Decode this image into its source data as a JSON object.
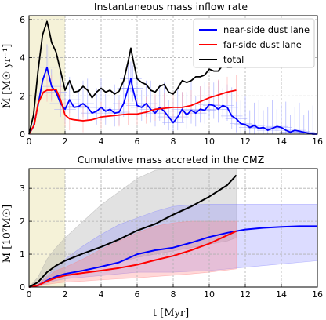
{
  "chart_data": [
    {
      "type": "line",
      "title": "Instantaneous mass inflow rate",
      "ylabel": "Ṁ [M☉ yr⁻¹]",
      "xlim": [
        0,
        16
      ],
      "ylim": [
        0,
        6.2
      ],
      "xticks": [
        0,
        2,
        4,
        6,
        8,
        10,
        12,
        14,
        16
      ],
      "yticks": [
        0,
        2,
        4,
        6
      ],
      "grid": true,
      "legend_position": "top-right",
      "shaded_span": [
        0,
        2
      ],
      "series": [
        {
          "name": "near-side dust lane",
          "color": "#0000ff",
          "x": [
            0,
            0.25,
            0.5,
            0.75,
            1.0,
            1.1,
            1.25,
            1.5,
            1.75,
            2.0,
            2.25,
            2.5,
            2.75,
            3.0,
            3.25,
            3.5,
            3.75,
            4.0,
            4.25,
            4.5,
            4.75,
            5.0,
            5.25,
            5.5,
            5.65,
            5.75,
            6.0,
            6.25,
            6.5,
            6.75,
            7.0,
            7.25,
            7.5,
            7.75,
            8.0,
            8.25,
            8.5,
            8.75,
            9.0,
            9.25,
            9.5,
            9.75,
            10.0,
            10.25,
            10.5,
            10.75,
            11.0,
            11.25,
            11.5,
            11.75,
            12.0,
            12.25,
            12.5,
            12.75,
            13.0,
            13.25,
            13.5,
            13.75,
            14.0,
            14.25,
            14.5,
            14.75,
            15.0,
            15.25,
            15.5,
            15.75,
            16.0
          ],
          "values": [
            0,
            0.4,
            1.5,
            2.8,
            3.5,
            3.1,
            2.5,
            2.2,
            1.6,
            1.3,
            1.8,
            1.4,
            1.45,
            1.6,
            1.4,
            1.1,
            1.2,
            1.4,
            1.2,
            1.3,
            1.1,
            1.15,
            1.6,
            2.4,
            2.9,
            2.4,
            1.5,
            1.4,
            1.6,
            1.3,
            1.1,
            1.4,
            1.2,
            0.9,
            0.6,
            0.9,
            1.3,
            1.0,
            1.25,
            1.1,
            1.3,
            1.25,
            1.55,
            1.5,
            1.3,
            1.5,
            1.4,
            0.95,
            0.8,
            0.55,
            0.5,
            0.35,
            0.45,
            0.3,
            0.35,
            0.2,
            0.3,
            0.4,
            0.35,
            0.2,
            0.1,
            0.2,
            0.15,
            0.1,
            0.05,
            0.0,
            0.0
          ]
        },
        {
          "name": "far-side dust lane",
          "color": "#ff0000",
          "x": [
            0,
            0.3,
            0.5,
            0.8,
            1.0,
            1.25,
            1.5,
            1.75,
            2.0,
            2.25,
            2.5,
            3.0,
            3.5,
            4.0,
            4.5,
            5.0,
            5.5,
            6.0,
            6.5,
            7.0,
            7.5,
            8.0,
            8.5,
            9.0,
            9.5,
            10.0,
            10.5,
            11.0,
            11.5
          ],
          "values": [
            0,
            0.5,
            1.6,
            2.2,
            2.3,
            2.3,
            2.35,
            1.8,
            1.0,
            0.8,
            0.75,
            0.7,
            0.75,
            0.9,
            0.95,
            1.0,
            1.05,
            1.05,
            1.15,
            1.3,
            1.35,
            1.4,
            1.4,
            1.5,
            1.7,
            1.9,
            2.05,
            2.2,
            2.3
          ]
        },
        {
          "name": "total",
          "color": "#000000",
          "x": [
            0,
            0.25,
            0.5,
            0.75,
            1.0,
            1.1,
            1.25,
            1.5,
            1.75,
            2.0,
            2.25,
            2.5,
            2.75,
            3.0,
            3.25,
            3.5,
            3.75,
            4.0,
            4.25,
            4.5,
            4.75,
            5.0,
            5.25,
            5.5,
            5.65,
            5.75,
            6.0,
            6.25,
            6.5,
            6.75,
            7.0,
            7.25,
            7.5,
            7.75,
            8.0,
            8.25,
            8.5,
            8.75,
            9.0,
            9.25,
            9.5,
            9.75,
            10.0,
            10.25,
            10.5,
            10.75,
            11.0,
            11.25,
            11.5
          ],
          "values": [
            0,
            1.0,
            3.3,
            5.2,
            5.9,
            5.5,
            4.8,
            4.3,
            3.3,
            2.3,
            2.8,
            2.2,
            2.25,
            2.5,
            2.3,
            1.9,
            2.2,
            2.4,
            2.2,
            2.3,
            2.1,
            2.25,
            2.8,
            3.8,
            4.5,
            4.0,
            2.9,
            2.7,
            2.6,
            2.3,
            2.2,
            2.5,
            2.6,
            2.2,
            2.1,
            2.4,
            2.8,
            2.7,
            2.8,
            3.0,
            3.0,
            3.1,
            3.4,
            3.3,
            3.3,
            3.6,
            3.5,
            3.5,
            3.8
          ]
        }
      ]
    },
    {
      "type": "line",
      "title": "Cumulative mass accreted in the CMZ",
      "xlabel": "t [Myr]",
      "ylabel": "M [10⁷M☉]",
      "xlim": [
        0,
        16
      ],
      "ylim": [
        0,
        3.6
      ],
      "xticks": [
        0,
        2,
        4,
        6,
        8,
        10,
        12,
        14,
        16
      ],
      "yticks": [
        0,
        1,
        2,
        3
      ],
      "grid": true,
      "shaded_span": [
        0,
        2
      ],
      "series": [
        {
          "name": "near-side dust lane",
          "color": "#0000ff",
          "x": [
            0,
            0.5,
            1,
            1.5,
            2,
            3,
            4,
            5,
            6,
            7,
            8,
            9,
            10,
            11,
            12,
            13,
            14,
            15,
            16
          ],
          "values": [
            0,
            0.05,
            0.2,
            0.32,
            0.4,
            0.5,
            0.62,
            0.75,
            1.0,
            1.12,
            1.2,
            1.35,
            1.52,
            1.65,
            1.75,
            1.8,
            1.83,
            1.85,
            1.85
          ],
          "band_low": [
            0,
            0.03,
            0.12,
            0.2,
            0.25,
            0.3,
            0.35,
            0.4,
            0.45,
            0.45,
            0.45,
            0.48,
            0.5,
            0.55,
            0.6,
            0.65,
            0.7,
            0.75,
            0.8
          ],
          "band_high": [
            0,
            0.08,
            0.35,
            0.6,
            0.85,
            1.25,
            1.6,
            1.9,
            2.1,
            2.3,
            2.45,
            2.5,
            2.52,
            2.52,
            2.52,
            2.52,
            2.52,
            2.52,
            2.52
          ]
        },
        {
          "name": "far-side dust lane",
          "color": "#ff0000",
          "x": [
            0,
            0.5,
            1,
            1.5,
            2,
            3,
            4,
            5,
            6,
            7,
            8,
            9,
            10,
            11.5
          ],
          "values": [
            0,
            0.05,
            0.18,
            0.28,
            0.35,
            0.43,
            0.5,
            0.58,
            0.68,
            0.82,
            0.95,
            1.12,
            1.32,
            1.7
          ],
          "band_low": [
            0,
            0.02,
            0.08,
            0.12,
            0.15,
            0.18,
            0.22,
            0.25,
            0.28,
            0.32,
            0.36,
            0.4,
            0.45,
            0.55
          ],
          "band_high": [
            0,
            0.08,
            0.3,
            0.5,
            0.6,
            0.85,
            1.15,
            1.4,
            1.65,
            1.85,
            1.95,
            2.0,
            2.0,
            2.0
          ]
        },
        {
          "name": "total",
          "color": "#000000",
          "x": [
            0,
            0.5,
            1,
            1.5,
            2,
            3,
            4,
            5,
            6,
            7,
            8,
            9,
            10,
            11,
            11.5
          ],
          "values": [
            0,
            0.15,
            0.45,
            0.65,
            0.8,
            1.02,
            1.22,
            1.45,
            1.72,
            1.92,
            2.2,
            2.45,
            2.75,
            3.1,
            3.4
          ],
          "band_low": [
            0,
            0.05,
            0.15,
            0.3,
            0.4,
            0.5,
            0.6,
            0.75,
            0.9,
            1.0,
            1.1,
            1.2,
            1.3,
            1.4,
            1.5
          ],
          "band_high": [
            0,
            0.3,
            0.85,
            1.2,
            1.5,
            2.0,
            2.5,
            2.9,
            3.3,
            3.55,
            3.6,
            3.6,
            3.6,
            3.6,
            3.6
          ]
        }
      ]
    }
  ]
}
